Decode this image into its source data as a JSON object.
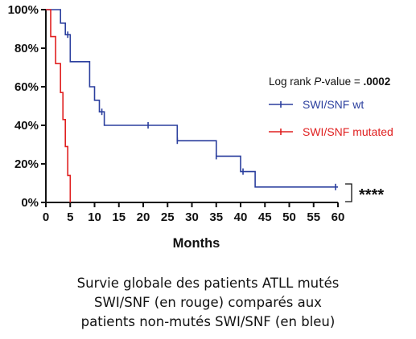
{
  "chart_data": {
    "type": "line",
    "xlabel": "Months",
    "ylabel": "",
    "xlim": [
      0,
      60
    ],
    "ylim": [
      0,
      100
    ],
    "x_ticks": [
      "0",
      "5",
      "10",
      "15",
      "20",
      "25",
      "30",
      "35",
      "40",
      "45",
      "50",
      "55",
      "60"
    ],
    "y_ticks": [
      "0%",
      "20%",
      "40%",
      "60%",
      "80%",
      "100%"
    ],
    "annotation": {
      "prefix": "Log rank ",
      "italic": "P",
      "middle": "-value = ",
      "bold": ".0002"
    },
    "significance": "****",
    "legend_position": "right",
    "series": [
      {
        "name": "SWI/SNF wt",
        "color": "#2b3f9e",
        "steps": [
          [
            0,
            100
          ],
          [
            3,
            100
          ],
          [
            3,
            93
          ],
          [
            4,
            93
          ],
          [
            4,
            87
          ],
          [
            5,
            87
          ],
          [
            5,
            73
          ],
          [
            9,
            73
          ],
          [
            9,
            60
          ],
          [
            10,
            60
          ],
          [
            10,
            53
          ],
          [
            11,
            53
          ],
          [
            11,
            47
          ],
          [
            12,
            47
          ],
          [
            12,
            40
          ],
          [
            27,
            40
          ],
          [
            27,
            32
          ],
          [
            35,
            32
          ],
          [
            35,
            24
          ],
          [
            40,
            24
          ],
          [
            40,
            16
          ],
          [
            43,
            16
          ],
          [
            43,
            8
          ],
          [
            60,
            8
          ]
        ],
        "censored": [
          [
            4.5,
            87
          ],
          [
            11.5,
            47
          ],
          [
            21,
            40
          ],
          [
            27,
            32
          ],
          [
            35,
            24
          ],
          [
            40.5,
            16
          ],
          [
            59.5,
            8
          ]
        ]
      },
      {
        "name": "SWI/SNF mutated",
        "color": "#e02020",
        "steps": [
          [
            0,
            100
          ],
          [
            1,
            100
          ],
          [
            1,
            86
          ],
          [
            2,
            86
          ],
          [
            2,
            72
          ],
          [
            3,
            72
          ],
          [
            3,
            57
          ],
          [
            3.5,
            57
          ],
          [
            3.5,
            43
          ],
          [
            4,
            43
          ],
          [
            4,
            29
          ],
          [
            4.5,
            29
          ],
          [
            4.5,
            14
          ],
          [
            5,
            14
          ],
          [
            5,
            0
          ]
        ],
        "censored": []
      }
    ]
  },
  "caption": [
    "Survie globale des patients ATLL mutés",
    "SWI/SNF (en rouge) comparés aux",
    "patients non-mutés SWI/SNF (en bleu)"
  ]
}
